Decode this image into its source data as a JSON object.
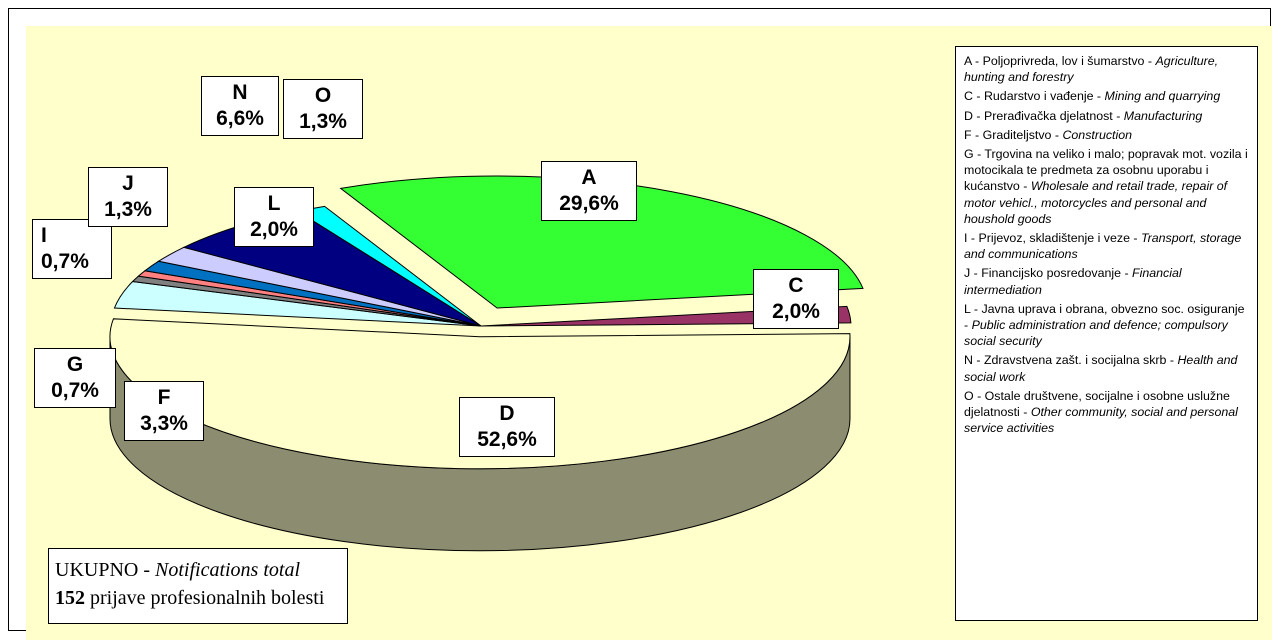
{
  "chart_data": {
    "type": "pie",
    "style": "3d-exploded",
    "slices": [
      {
        "key": "A",
        "label": "A",
        "value": 29.6,
        "value_text": "29,6%",
        "color": "#33ff33"
      },
      {
        "key": "C",
        "label": "C",
        "value": 2.0,
        "value_text": "2,0%",
        "color": "#993366"
      },
      {
        "key": "D",
        "label": "D",
        "value": 52.6,
        "value_text": "52,6%",
        "color": "#ffffcc"
      },
      {
        "key": "F",
        "label": "F",
        "value": 3.3,
        "value_text": "3,3%",
        "color": "#ccffff"
      },
      {
        "key": "G",
        "label": "G",
        "value": 0.7,
        "value_text": "0,7%",
        "color": "#808080"
      },
      {
        "key": "I",
        "label": "I",
        "value": 0.7,
        "value_text": "0,7%",
        "color": "#ff8080"
      },
      {
        "key": "J",
        "label": "J",
        "value": 1.3,
        "value_text": "1,3%",
        "color": "#0070c0"
      },
      {
        "key": "L",
        "label": "L",
        "value": 2.0,
        "value_text": "2,0%",
        "color": "#ccccff"
      },
      {
        "key": "N",
        "label": "N",
        "value": 6.6,
        "value_text": "6,6%",
        "color": "#000080"
      },
      {
        "key": "O",
        "label": "O",
        "value": 1.3,
        "value_text": "1,3%",
        "color": "#00ffff"
      }
    ],
    "legend_position": "right",
    "legend": [
      {
        "hr": "A - Poljoprivreda, lov i šumarstvo -",
        "en": "Agriculture, hunting and forestry"
      },
      {
        "hr": "C - Rudarstvo i vađenje -",
        "en": "Mining and quarrying"
      },
      {
        "hr": "D - Prerađivačka djelatnost -",
        "en": "Manufacturing"
      },
      {
        "hr": "F - Graditeljstvo -",
        "en": "Construction"
      },
      {
        "hr": "G - Trgovina na veliko i malo; popravak mot. vozila i motocikala te predmeta za osobnu uporabu i kućanstvo -",
        "en": "Wholesale and retail trade, repair of motor vehicl., motorcycles and personal and houshold goods"
      },
      {
        "hr": "I - Prijevoz, skladištenje i veze -",
        "en": "Transport, storage and communications"
      },
      {
        "hr": "J - Financijsko posredovanje -",
        "en": "Financial intermediation"
      },
      {
        "hr": "L - Javna uprava i obrana, obvezno soc. osiguranje -",
        "en": "Public administration and defence; compulsory social security"
      },
      {
        "hr": "N - Zdravstvena zašt. i socijalna skrb -",
        "en": "Health and social work"
      },
      {
        "hr": "O - Ostale društvene, socijalne i osobne uslužne djelatnosti -",
        "en": "Other community, social and personal service activities"
      }
    ],
    "total_box": {
      "label_hr": "UKUPNO -",
      "label_en": "Notifications total",
      "count": "152",
      "count_text": "prijave profesionalnih bolesti"
    }
  }
}
